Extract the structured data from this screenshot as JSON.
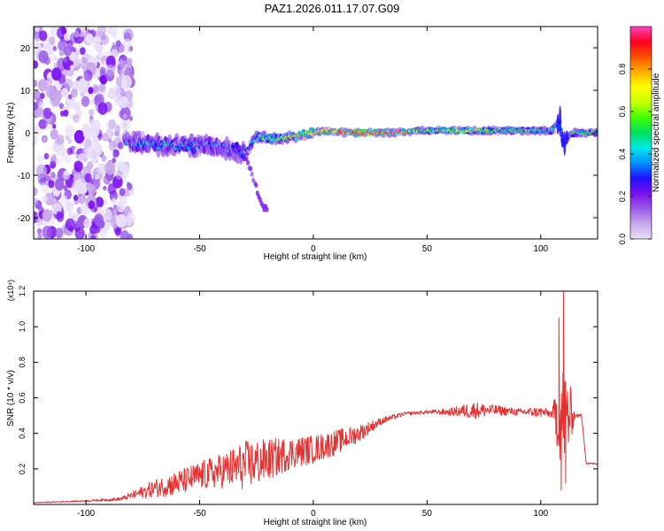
{
  "title": "PAZ1.2026.011.17.07.G09",
  "colorbar": {
    "label": "Normalized spectral amplitude",
    "ticks": [
      "0.0",
      "0.2",
      "0.4",
      "0.6",
      "0.8"
    ],
    "tick_values": [
      0.0,
      0.2,
      0.4,
      0.6,
      0.8
    ],
    "range": [
      0,
      1
    ],
    "colors": [
      "#e8e0f8",
      "#c8a8ec",
      "#9a5ae8",
      "#7a10f0",
      "#2010ff",
      "#0090ff",
      "#00e8e8",
      "#00e060",
      "#40ff00",
      "#c8ff00",
      "#ffff00",
      "#ffb000",
      "#ff5000",
      "#ff0020",
      "#ff40c0"
    ]
  },
  "chart_data": [
    {
      "type": "heatmap",
      "xlabel": "Height of straight line (km)",
      "ylabel": "Frequency (Hz)",
      "xlim": [
        -123,
        125
      ],
      "ylim": [
        -25,
        25
      ],
      "xticks": [
        -100,
        -50,
        0,
        50,
        100
      ],
      "yticks": [
        -20,
        -10,
        0,
        10,
        20
      ],
      "ridge": {
        "description": "dominant frequency track",
        "x": [
          -83,
          -75,
          -65,
          -55,
          -45,
          -35,
          -30,
          -25,
          -15,
          -5,
          5,
          15,
          25,
          35,
          45,
          55,
          65,
          75,
          85,
          95,
          105,
          108,
          110,
          112,
          115,
          125
        ],
        "frequency": [
          -2,
          -2.5,
          -3,
          -3,
          -3,
          -4,
          -5,
          -1,
          -1.5,
          -0.5,
          0.5,
          0,
          0,
          0,
          0.5,
          0.5,
          0.5,
          0.5,
          0.5,
          0.5,
          0.5,
          3,
          -3,
          -1,
          0,
          0
        ],
        "amplitude": [
          0.3,
          0.4,
          0.45,
          0.4,
          0.35,
          0.35,
          0.3,
          0.45,
          0.55,
          0.7,
          0.8,
          0.95,
          0.95,
          0.85,
          0.6,
          0.55,
          0.6,
          0.6,
          0.5,
          0.55,
          0.4,
          0.4,
          0.35,
          0.3,
          0.5,
          0.45
        ]
      },
      "spur": {
        "x": [
          -30,
          -27,
          -24,
          -20
        ],
        "frequency": [
          -5,
          -10,
          -15,
          -19
        ]
      },
      "noise_region": {
        "x_range": [
          -123,
          -80
        ],
        "frequency_range": [
          -25,
          25
        ]
      }
    },
    {
      "type": "line",
      "xlabel": "Height of straight line (km)",
      "ylabel": "SNR (10 * v/v)",
      "multiplier": "(x10⁴)",
      "xlim": [
        -123,
        125
      ],
      "ylim": [
        0,
        1.2
      ],
      "xticks": [
        -100,
        -50,
        0,
        50,
        100
      ],
      "yticks": [
        0.2,
        0.4,
        0.6,
        0.8,
        1.0,
        1.2
      ],
      "color": "#e83030",
      "series": [
        {
          "name": "SNR",
          "x": [
            -123,
            -100,
            -85,
            -80,
            -70,
            -60,
            -50,
            -40,
            -30,
            -20,
            -10,
            0,
            10,
            20,
            30,
            40,
            50,
            60,
            70,
            80,
            90,
            100,
            105,
            108,
            110,
            112,
            115,
            118,
            120,
            125
          ],
          "base": [
            0.01,
            0.02,
            0.03,
            0.05,
            0.09,
            0.12,
            0.16,
            0.19,
            0.22,
            0.25,
            0.29,
            0.31,
            0.35,
            0.4,
            0.47,
            0.51,
            0.52,
            0.52,
            0.53,
            0.53,
            0.52,
            0.52,
            0.51,
            0.5,
            0.5,
            0.5,
            0.5,
            0.5,
            0.23,
            0.23
          ],
          "jitter": [
            0.002,
            0.004,
            0.01,
            0.02,
            0.05,
            0.07,
            0.08,
            0.1,
            0.14,
            0.12,
            0.09,
            0.08,
            0.07,
            0.05,
            0.02,
            0.01,
            0.01,
            0.02,
            0.05,
            0.03,
            0.02,
            0.03,
            0.02,
            0.25,
            0.3,
            0.25,
            0.01,
            0.01,
            0.005,
            0.005
          ],
          "peaks": [
            {
              "x": 108,
              "y": 1.05
            },
            {
              "x": 110,
              "y": 1.2
            },
            {
              "x": 109,
              "y": 0.08
            },
            {
              "x": 111,
              "y": 0.12
            }
          ]
        }
      ]
    }
  ]
}
